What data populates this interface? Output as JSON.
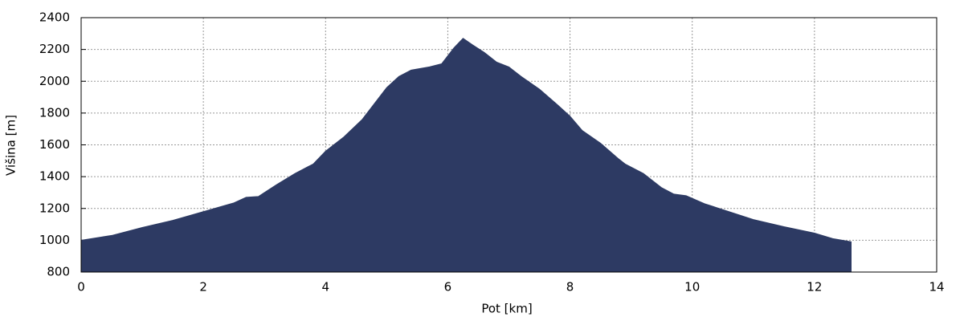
{
  "chart_data": {
    "type": "area",
    "x_label": "Pot [km]",
    "y_label": "Višina [m]",
    "x": [
      0,
      0.5,
      1.0,
      1.5,
      2.0,
      2.5,
      2.7,
      2.9,
      3.0,
      3.2,
      3.5,
      3.8,
      4.0,
      4.3,
      4.6,
      5.0,
      5.2,
      5.4,
      5.7,
      5.9,
      6.1,
      6.25,
      6.4,
      6.6,
      6.8,
      7.0,
      7.2,
      7.5,
      7.8,
      8.0,
      8.2,
      8.5,
      8.8,
      8.9,
      9.2,
      9.5,
      9.7,
      9.9,
      10.2,
      10.6,
      11.0,
      11.5,
      12.0,
      12.3,
      12.6
    ],
    "values": [
      1000,
      1030,
      1080,
      1125,
      1180,
      1235,
      1270,
      1275,
      1300,
      1350,
      1420,
      1480,
      1560,
      1650,
      1760,
      1960,
      2030,
      2070,
      2090,
      2110,
      2210,
      2270,
      2230,
      2180,
      2120,
      2090,
      2030,
      1950,
      1850,
      1780,
      1690,
      1610,
      1510,
      1480,
      1420,
      1330,
      1290,
      1280,
      1230,
      1180,
      1130,
      1085,
      1045,
      1010,
      990
    ],
    "color": "#2d3a63",
    "xlim": [
      0,
      14
    ],
    "xticks": [
      0,
      2,
      4,
      6,
      8,
      10,
      12,
      14
    ],
    "ylim": [
      800,
      2400
    ],
    "yticks": [
      800,
      1000,
      1200,
      1400,
      1600,
      1800,
      2000,
      2200,
      2400
    ],
    "grid": true
  }
}
